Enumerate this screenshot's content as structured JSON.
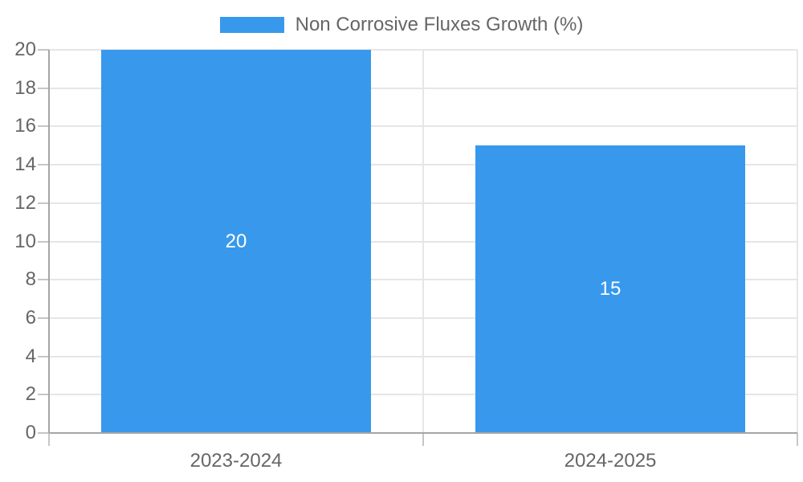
{
  "chart_data": {
    "type": "bar",
    "title": "",
    "legend_label": "Non Corrosive Fluxes Growth (%)",
    "legend_position": "top-center",
    "categories": [
      "2023-2024",
      "2024-2025"
    ],
    "series": [
      {
        "name": "Non Corrosive Fluxes Growth (%)",
        "values": [
          20,
          15
        ]
      }
    ],
    "values": [
      20,
      15
    ],
    "data_labels": [
      "20",
      "15"
    ],
    "data_label_color": "#ffffff",
    "ylim": [
      0,
      20
    ],
    "ytick_step": 2,
    "yticks": [
      0,
      2,
      4,
      6,
      8,
      10,
      12,
      14,
      16,
      18,
      20
    ],
    "grid": true,
    "colors": {
      "bar": "#3899ec",
      "grid": "#e6e6e6",
      "tick": "#c6c6c6",
      "axis": "#a6a6a6",
      "axis_label": "#666666",
      "legend_text": "#666666",
      "background": "#ffffff"
    }
  }
}
